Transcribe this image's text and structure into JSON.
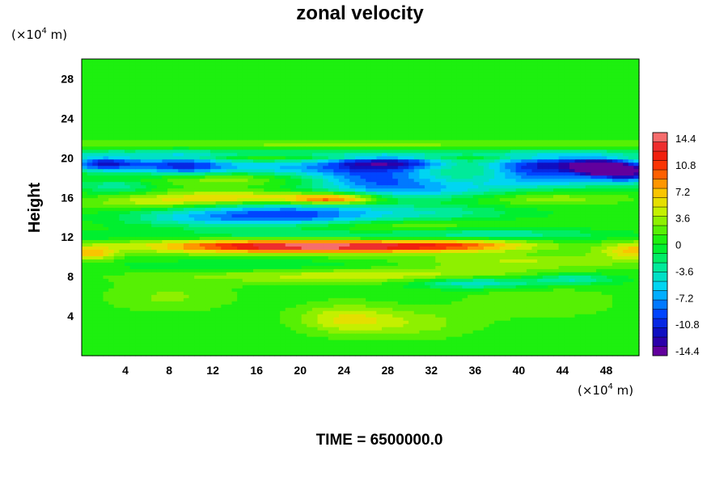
{
  "chart_data": {
    "type": "heatmap",
    "title": "zonal velocity",
    "ylabel": "Height",
    "xlabel": "",
    "x_unit": {
      "prefix": "(×10",
      "exp": "4",
      "suffix": " m)"
    },
    "y_unit": {
      "prefix": "(×10",
      "exp": "4",
      "suffix": " m)"
    },
    "xlim": [
      0,
      51
    ],
    "ylim": [
      0,
      30
    ],
    "x_ticks": [
      4,
      8,
      12,
      16,
      20,
      24,
      28,
      32,
      36,
      40,
      44,
      48
    ],
    "y_ticks": [
      4,
      8,
      12,
      16,
      20,
      24,
      28
    ],
    "colorbar": {
      "min": -14.4,
      "max": 14.4,
      "ticks": [
        "14.4",
        "10.8",
        "7.2",
        "3.6",
        "0",
        "-3.6",
        "-7.2",
        "-10.8",
        "-14.4"
      ],
      "levels": 24
    },
    "features": [
      {
        "x": 51,
        "y": 10.7,
        "value": 6,
        "sx": 2.5,
        "sy": 0.6
      },
      {
        "x": 1,
        "y": 10.4,
        "value": 6,
        "sx": 1.5,
        "sy": 0.5
      },
      {
        "x": 24,
        "y": 11.1,
        "value": 11,
        "sx": 9,
        "sy": 0.45
      },
      {
        "x": 14,
        "y": 11.2,
        "value": 5,
        "sx": 8,
        "sy": 0.6
      },
      {
        "x": 35,
        "y": 11.3,
        "value": 4,
        "sx": 5,
        "sy": 0.5
      },
      {
        "x": 20,
        "y": 12.1,
        "value": -3,
        "sx": 18,
        "sy": 0.4
      },
      {
        "x": 19,
        "y": 14.3,
        "value": -9,
        "sx": 6,
        "sy": 0.9
      },
      {
        "x": 10,
        "y": 14.0,
        "value": -4,
        "sx": 5,
        "sy": 0.7
      },
      {
        "x": 32,
        "y": 14.5,
        "value": -3.5,
        "sx": 6,
        "sy": 0.6
      },
      {
        "x": 23,
        "y": 15.9,
        "value": 10,
        "sx": 3,
        "sy": 0.4
      },
      {
        "x": 14,
        "y": 16.0,
        "value": 6,
        "sx": 5,
        "sy": 0.5
      },
      {
        "x": 31,
        "y": 16.8,
        "value": -6,
        "sx": 7,
        "sy": 0.7
      },
      {
        "x": 3,
        "y": 17.2,
        "value": -4,
        "sx": 2.5,
        "sy": 0.5
      },
      {
        "x": 27,
        "y": 18.2,
        "value": -8,
        "sx": 4,
        "sy": 0.9
      },
      {
        "x": 44,
        "y": 17.8,
        "value": -5,
        "sx": 6,
        "sy": 0.6
      },
      {
        "x": 12,
        "y": 18.0,
        "value": 4,
        "sx": 5,
        "sy": 0.5
      },
      {
        "x": 2,
        "y": 19.5,
        "value": -11,
        "sx": 2.5,
        "sy": 0.6
      },
      {
        "x": 9,
        "y": 19.3,
        "value": -9,
        "sx": 3,
        "sy": 0.8
      },
      {
        "x": 28,
        "y": 19.6,
        "value": -10,
        "sx": 4,
        "sy": 0.5
      },
      {
        "x": 41,
        "y": 19.2,
        "value": -9,
        "sx": 3,
        "sy": 0.8
      },
      {
        "x": 47,
        "y": 19.3,
        "value": -12,
        "sx": 3,
        "sy": 0.7
      },
      {
        "x": 47,
        "y": 19.0,
        "value": -14,
        "sx": 1,
        "sy": 0.4
      },
      {
        "x": 50,
        "y": 18.6,
        "value": -11,
        "sx": 1.5,
        "sy": 0.6
      },
      {
        "x": 18,
        "y": 19.0,
        "value": -6,
        "sx": 6,
        "sy": 0.6
      },
      {
        "x": 20,
        "y": 20.0,
        "value": 3,
        "sx": 25,
        "sy": 0.2
      },
      {
        "x": 25,
        "y": 20.5,
        "value": -2.5,
        "sx": 28,
        "sy": 0.5
      },
      {
        "x": 25,
        "y": 21.3,
        "value": 2.5,
        "sx": 30,
        "sy": 0.3
      },
      {
        "x": 25,
        "y": 8.3,
        "value": 4.5,
        "sx": 12,
        "sy": 0.6
      },
      {
        "x": 40,
        "y": 9.6,
        "value": 3,
        "sx": 8,
        "sy": 0.5
      },
      {
        "x": 36,
        "y": 7.4,
        "value": -6,
        "sx": 4,
        "sy": 0.4
      },
      {
        "x": 45,
        "y": 7.8,
        "value": -5,
        "sx": 3,
        "sy": 0.4
      },
      {
        "x": 18,
        "y": 9.0,
        "value": -3,
        "sx": 10,
        "sy": 0.5
      },
      {
        "x": 38,
        "y": 12.5,
        "value": -3,
        "sx": 6,
        "sy": 0.5
      },
      {
        "x": 24,
        "y": 3.8,
        "value": 4,
        "sx": 3,
        "sy": 1.0
      },
      {
        "x": 30,
        "y": 3.3,
        "value": 2.5,
        "sx": 4,
        "sy": 1.0
      },
      {
        "x": 8,
        "y": 6.0,
        "value": 2,
        "sx": 4,
        "sy": 1.0
      },
      {
        "x": 42,
        "y": 5.5,
        "value": 1.5,
        "sx": 5,
        "sy": 1.2
      },
      {
        "x": 28,
        "y": 13.2,
        "value": 2.5,
        "sx": 10,
        "sy": 0.4
      },
      {
        "x": 6,
        "y": 15.5,
        "value": 3,
        "sx": 4,
        "sy": 0.5
      },
      {
        "x": 42,
        "y": 16.0,
        "value": 3,
        "sx": 5,
        "sy": 0.5
      }
    ]
  },
  "footer": {
    "time_label": "TIME = 6500000.0"
  }
}
